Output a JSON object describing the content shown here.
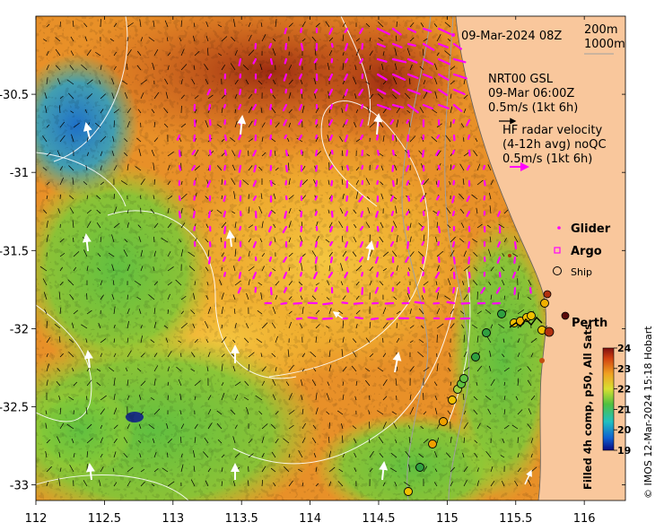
{
  "map": {
    "date_label": "09-Mar-2024 08Z",
    "isobath_labels": [
      "200m",
      "1000m"
    ],
    "gsl_label_lines": [
      "NRT00 GSL",
      "09-Mar 06:00Z",
      "0.5m/s (1kt 6h)"
    ],
    "hf_label_lines": [
      "HF radar velocity",
      "(4-12h avg) noQC",
      "0.5m/s (1kt 6h)"
    ],
    "legend": {
      "glider": "Glider",
      "argo": "Argo",
      "ship": "Ship"
    },
    "city_label": "Perth",
    "colorbar": {
      "label": "Filled 4h comp, p50, All Sats",
      "ticks": [
        24,
        23,
        22,
        21,
        20,
        19
      ],
      "min": 19,
      "max": 24
    },
    "credit": "© IMOS 12-Mar-2024 15:18 Hobart",
    "x_ticks": [
      "112",
      "112.5",
      "113",
      "113.5",
      "114",
      "114.5",
      "115",
      "115.5",
      "116"
    ],
    "y_ticks": [
      "-30.5",
      "-31",
      "-31.5",
      "-32",
      "-32.5",
      "-33"
    ],
    "x_range": [
      112,
      116.3
    ],
    "y_range": [
      -33.1,
      -30.0
    ],
    "colors": {
      "land": "#f9c79c",
      "hf_arrows": "#ff00ff",
      "white_arrows": "#ffffff",
      "contours": "#ffffff",
      "isobath": "#a0a0a0",
      "coast_dot": "#b03010"
    }
  }
}
